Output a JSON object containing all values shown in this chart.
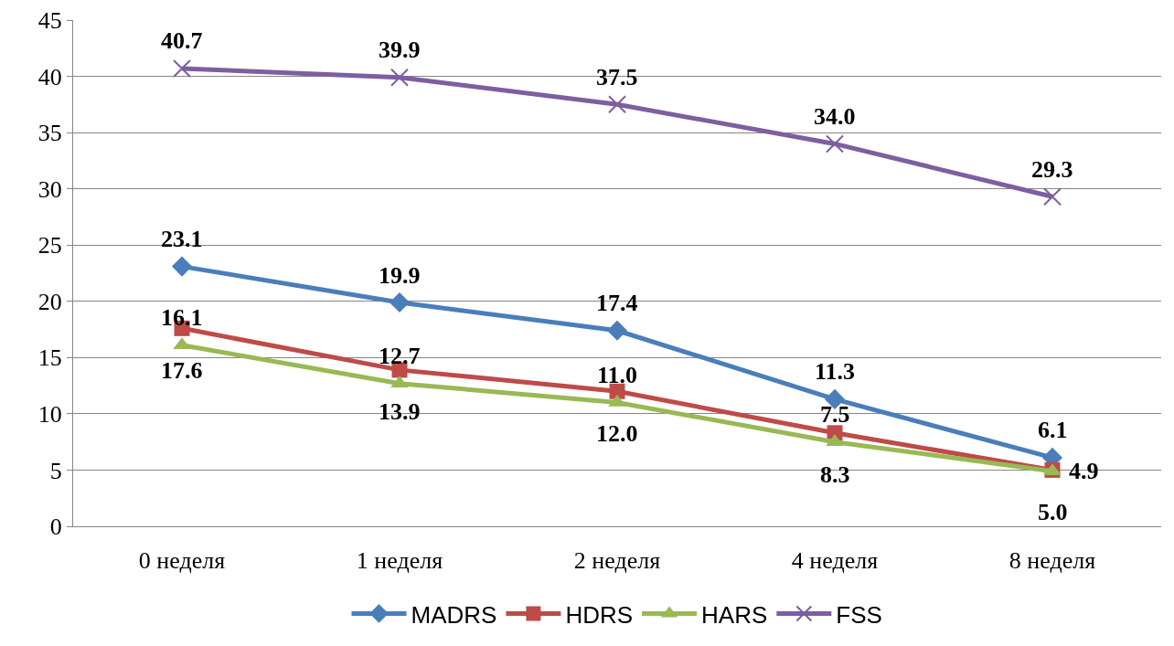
{
  "chart_data": {
    "type": "line",
    "categories": [
      "0 неделя",
      "1 неделя",
      "2 неделя",
      "4 неделя",
      "8 неделя"
    ],
    "ylim": [
      0,
      45
    ],
    "yticks": [
      0,
      5,
      10,
      15,
      20,
      25,
      30,
      35,
      40,
      45
    ],
    "grid": "y",
    "legend": "bottom",
    "line_style": "solid",
    "series": [
      {
        "name": "MADRS",
        "color": "#4a7ebb",
        "marker": "diamond",
        "values": [
          23.1,
          19.9,
          17.4,
          11.3,
          6.1
        ],
        "value_labels": [
          "23.1",
          "19.9",
          "17.4",
          "11.3",
          "6.1"
        ]
      },
      {
        "name": "HDRS",
        "color": "#be4b48",
        "marker": "square",
        "values": [
          17.6,
          13.9,
          12.0,
          8.3,
          5.0
        ],
        "value_labels": [
          "17.6",
          "13.9",
          "12.0",
          "8.3",
          "5.0"
        ]
      },
      {
        "name": "HARS",
        "color": "#98b954",
        "marker": "triangle",
        "values": [
          16.1,
          12.7,
          11.0,
          7.5,
          4.9
        ],
        "value_labels": [
          "16.1",
          "12.7",
          "11.0",
          "7.5",
          "4.9"
        ]
      },
      {
        "name": "FSS",
        "color": "#7d5fa0",
        "marker": "cross",
        "values": [
          40.7,
          39.9,
          37.5,
          34.0,
          29.3
        ],
        "value_labels": [
          "40.7",
          "39.9",
          "37.5",
          "34.0",
          "29.3"
        ]
      }
    ]
  }
}
